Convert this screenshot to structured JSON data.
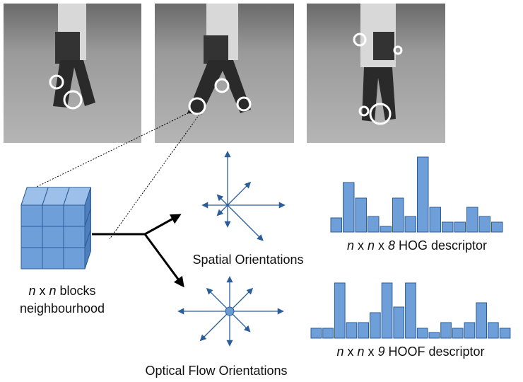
{
  "figure": {
    "cube_label": {
      "lines": [
        [
          "n",
          " x ",
          "n",
          " blocks"
        ],
        [
          "neighbourhood"
        ]
      ]
    },
    "spatial_label": "Spatial Orientations",
    "flow_label": "Optical Flow Orientations",
    "hog": {
      "label": [
        "n",
        " x ",
        "n",
        " x ",
        "8",
        " HOG descriptor"
      ],
      "values": [
        20,
        70,
        48,
        22,
        8,
        48,
        22,
        106,
        35,
        14,
        14,
        35,
        22,
        14
      ]
    },
    "hoof": {
      "label": [
        "n",
        " x ",
        "n",
        " x ",
        "9",
        " HOOF descriptor"
      ],
      "values": [
        14,
        14,
        78,
        22,
        22,
        36,
        78,
        44,
        78,
        14,
        8,
        22,
        14,
        22,
        50,
        22,
        14
      ]
    }
  }
}
